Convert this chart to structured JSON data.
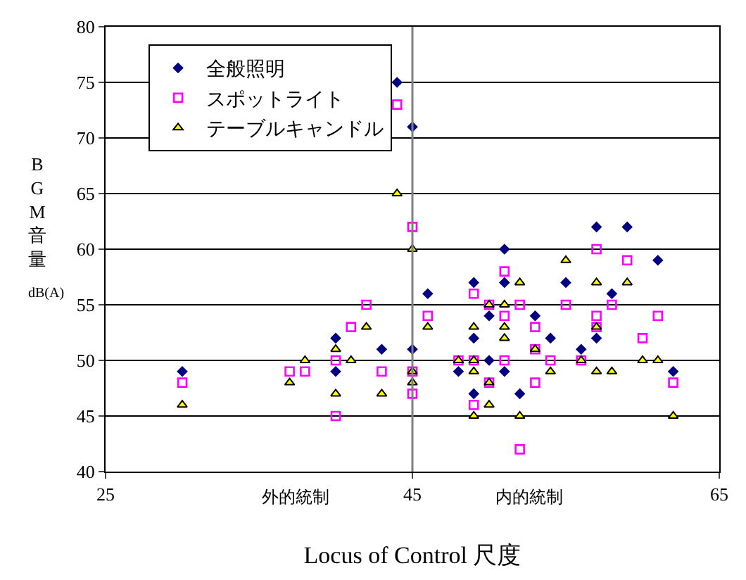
{
  "chart_data": {
    "type": "scatter",
    "xlabel": "Locus of Control 尺度",
    "ylabel": "BGM音量",
    "annotations": [
      "外的統制",
      "内的統制",
      "dB(A)"
    ],
    "xlim": [
      25,
      65
    ],
    "xticks": [
      25,
      45,
      65
    ],
    "ylim": [
      40,
      80
    ],
    "yticks": [
      40,
      45,
      50,
      55,
      60,
      65,
      70,
      75,
      80
    ],
    "grid": "y",
    "legend": "top left",
    "ref_lines": [
      {
        "axis": "x",
        "value": 45,
        "color": "#808080"
      }
    ],
    "series": [
      {
        "name": "全般照明",
        "color": "#000080",
        "marker": "diamond",
        "x": [
          30,
          40,
          40,
          43,
          44,
          45,
          45,
          46,
          48,
          49,
          49,
          49,
          50,
          50,
          51,
          51,
          51,
          52,
          53,
          54,
          55,
          56,
          57,
          57,
          58,
          59,
          61,
          62
        ],
        "values": [
          49,
          52,
          49,
          51,
          75,
          71,
          51,
          56,
          49,
          57,
          52,
          47,
          54,
          50,
          60,
          57,
          49,
          47,
          54,
          52,
          57,
          51,
          62,
          52,
          56,
          62,
          59,
          49
        ]
      },
      {
        "name": "スポットライト",
        "color": "#ff00ff",
        "marker": "square",
        "x": [
          30,
          37,
          38,
          40,
          40,
          41,
          42,
          43,
          44,
          45,
          45,
          45,
          46,
          48,
          49,
          49,
          49,
          50,
          50,
          51,
          51,
          51,
          52,
          52,
          53,
          53,
          53,
          54,
          55,
          56,
          57,
          57,
          57,
          58,
          59,
          60,
          61,
          62
        ],
        "values": [
          48,
          49,
          49,
          50,
          45,
          53,
          55,
          49,
          73,
          62,
          49,
          47,
          54,
          50,
          56,
          50,
          46,
          55,
          48,
          58,
          54,
          50,
          55,
          42,
          53,
          51,
          48,
          50,
          55,
          50,
          60,
          54,
          53,
          55,
          59,
          52,
          54,
          48
        ]
      },
      {
        "name": "テーブルキャンドル",
        "color": "#ffff00",
        "marker": "triangle",
        "x": [
          30,
          37,
          38,
          40,
          40,
          41,
          42,
          43,
          44,
          45,
          45,
          45,
          46,
          48,
          49,
          49,
          49,
          49,
          50,
          50,
          50,
          51,
          51,
          51,
          52,
          52,
          53,
          54,
          55,
          56,
          57,
          57,
          57,
          58,
          59,
          60,
          61,
          62
        ],
        "values": [
          46,
          48,
          50,
          51,
          47,
          50,
          53,
          47,
          65,
          60,
          49,
          48,
          53,
          50,
          53,
          50,
          49,
          45,
          55,
          48,
          46,
          55,
          53,
          52,
          57,
          45,
          51,
          49,
          59,
          50,
          57,
          53,
          49,
          49,
          57,
          50,
          50,
          45
        ]
      }
    ]
  }
}
